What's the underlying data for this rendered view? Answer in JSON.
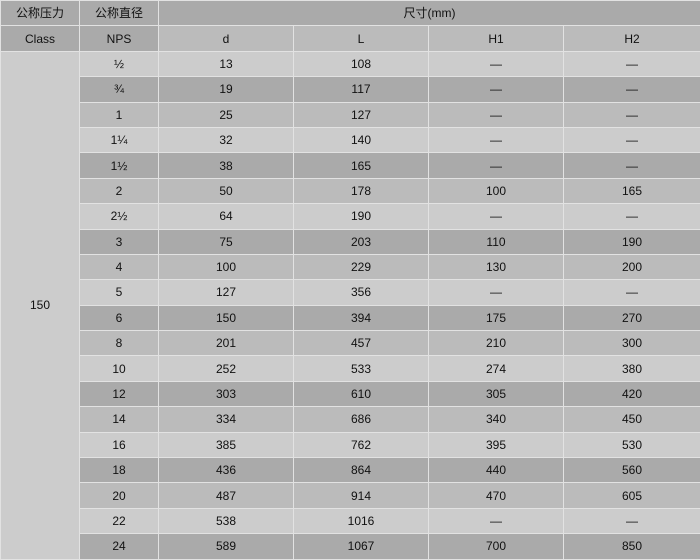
{
  "header": {
    "class_cn": "公称压力",
    "class_en": "Class",
    "nps_cn": "公称直径",
    "nps_en": "NPS",
    "dims": "尺寸(mm)",
    "cols": [
      "d",
      "L",
      "H1",
      "H2"
    ]
  },
  "class_value": "150",
  "colors": {
    "light": "#cccccc",
    "dark": "#aaaaaa",
    "mid": "#bbbbbb"
  },
  "rows": [
    [
      "½",
      "13",
      "108",
      "—",
      "—"
    ],
    [
      "¾",
      "19",
      "117",
      "—",
      "—"
    ],
    [
      "1",
      "25",
      "127",
      "—",
      "—"
    ],
    [
      "1¼",
      "32",
      "140",
      "—",
      "—"
    ],
    [
      "1½",
      "38",
      "165",
      "—",
      "—"
    ],
    [
      "2",
      "50",
      "178",
      "100",
      "165"
    ],
    [
      "2½",
      "64",
      "190",
      "—",
      "—"
    ],
    [
      "3",
      "75",
      "203",
      "110",
      "190"
    ],
    [
      "4",
      "100",
      "229",
      "130",
      "200"
    ],
    [
      "5",
      "127",
      "356",
      "—",
      "—"
    ],
    [
      "6",
      "150",
      "394",
      "175",
      "270"
    ],
    [
      "8",
      "201",
      "457",
      "210",
      "300"
    ],
    [
      "10",
      "252",
      "533",
      "274",
      "380"
    ],
    [
      "12",
      "303",
      "610",
      "305",
      "420"
    ],
    [
      "14",
      "334",
      "686",
      "340",
      "450"
    ],
    [
      "16",
      "385",
      "762",
      "395",
      "530"
    ],
    [
      "18",
      "436",
      "864",
      "440",
      "560"
    ],
    [
      "20",
      "487",
      "914",
      "470",
      "605"
    ],
    [
      "22",
      "538",
      "1016",
      "—",
      "—"
    ],
    [
      "24",
      "589",
      "1067",
      "700",
      "850"
    ]
  ]
}
